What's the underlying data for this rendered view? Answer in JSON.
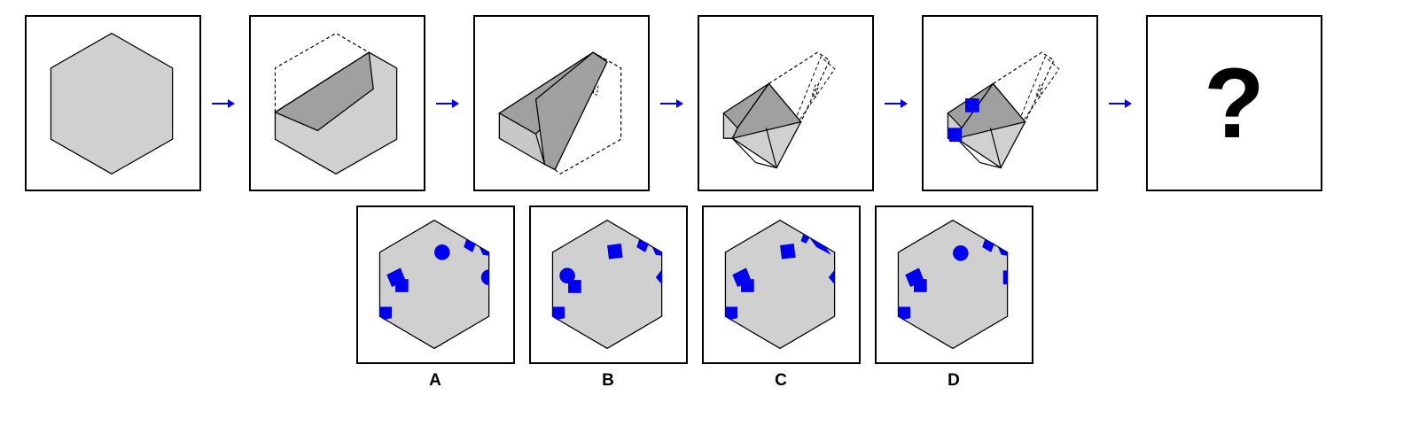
{
  "colors": {
    "paper": "#d0d0d0",
    "fold": "#a0a0a0",
    "hole": "#0000ee",
    "arrow": "#0000ee",
    "outline": "#000000"
  },
  "sequence": {
    "steps": [
      "unfolded-sheet",
      "fold-1",
      "fold-2",
      "fold-3",
      "punched"
    ],
    "question_mark": "?"
  },
  "options": [
    {
      "label": "A"
    },
    {
      "label": "B"
    },
    {
      "label": "C"
    },
    {
      "label": "D"
    }
  ]
}
